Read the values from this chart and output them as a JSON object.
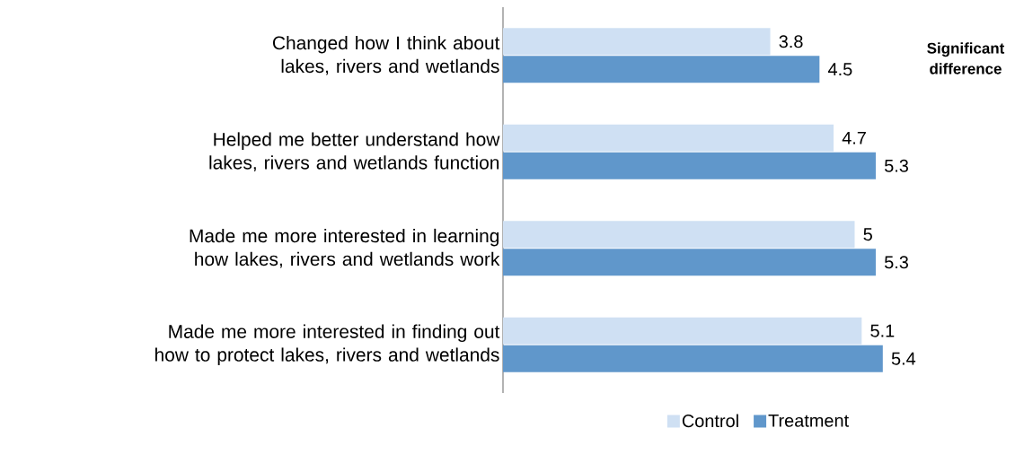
{
  "chart_data": {
    "type": "bar",
    "orientation": "horizontal",
    "categories": [
      "Changed how I think about lakes, rivers and wetlands",
      "Helped me better understand how lakes, rivers and wetlands function",
      "Made me more interested in learning how lakes, rivers and wetlands work",
      "Made me more interested in finding out how to protect lakes, rivers and wetlands"
    ],
    "series": [
      {
        "name": "Control",
        "color": "#cfe0f3",
        "values": [
          3.8,
          4.7,
          5,
          5.1
        ]
      },
      {
        "name": "Treatment",
        "color": "#6097cb",
        "values": [
          4.5,
          5.3,
          5.3,
          5.4
        ]
      }
    ],
    "tick_labels": "y",
    "data_labels": true,
    "legend": "bottom",
    "annotations": [
      "Significant difference"
    ]
  }
}
